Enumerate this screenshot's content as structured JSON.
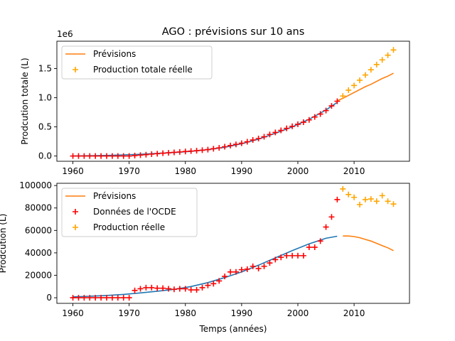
{
  "colors": {
    "fit": "#1f77b4",
    "forecast": "#ff7f0e",
    "ocde": "#ff0000",
    "actual": "#ffa500"
  },
  "chart_data": [
    {
      "type": "line",
      "title": "AGO : prévisions sur 10 ans",
      "xlabel": "",
      "ylabel": "Prodcution totale (L)",
      "offset_label": "1e6",
      "xlim": [
        1957.15,
        2019.85
      ],
      "ylim": [
        -0.09,
        1.97
      ],
      "x_ticks": [
        1960,
        1970,
        1980,
        1990,
        2000,
        2010
      ],
      "y_ticks": [
        0.0,
        0.5,
        1.0,
        1.5
      ],
      "y_tick_labels": [
        "0.0",
        "0.5",
        "1.0",
        "1.5"
      ],
      "legend_position": "upper left",
      "grid": false,
      "series": [
        {
          "name": "Prévisions",
          "kind": "line",
          "color": "#ff7f0e",
          "x": [
            2007,
            2008,
            2009,
            2010,
            2011,
            2012,
            2013,
            2014,
            2015,
            2016,
            2017
          ],
          "y": [
            0.95,
            0.99,
            1.04,
            1.09,
            1.14,
            1.19,
            1.23,
            1.28,
            1.33,
            1.37,
            1.42
          ]
        },
        {
          "name": "",
          "kind": "line",
          "color": "#1f77b4",
          "x": [
            1960,
            1963,
            1966,
            1969,
            1972,
            1975,
            1978,
            1981,
            1984,
            1987,
            1990,
            1993,
            1996,
            1999,
            2002,
            2005,
            2007
          ],
          "y": [
            0.0,
            0.005,
            0.01,
            0.02,
            0.03,
            0.045,
            0.06,
            0.08,
            0.11,
            0.15,
            0.21,
            0.29,
            0.39,
            0.5,
            0.63,
            0.79,
            0.92
          ]
        },
        {
          "name": "",
          "kind": "marker",
          "color": "#ff0000",
          "x": [
            1960,
            1961,
            1962,
            1963,
            1964,
            1965,
            1966,
            1967,
            1968,
            1969,
            1970,
            1971,
            1972,
            1973,
            1974,
            1975,
            1976,
            1977,
            1978,
            1979,
            1980,
            1981,
            1982,
            1983,
            1984,
            1985,
            1986,
            1987,
            1988,
            1989,
            1990,
            1991,
            1992,
            1993,
            1994,
            1995,
            1996,
            1997,
            1998,
            1999,
            2000,
            2001,
            2002,
            2003,
            2004,
            2005,
            2006,
            2007
          ],
          "y": [
            0.0,
            0.0,
            0.0,
            0.0,
            0.0,
            0.0,
            0.0,
            0.0,
            0.0,
            0.0,
            0.0,
            0.007,
            0.015,
            0.023,
            0.032,
            0.04,
            0.048,
            0.055,
            0.063,
            0.07,
            0.078,
            0.085,
            0.092,
            0.1,
            0.11,
            0.125,
            0.14,
            0.16,
            0.18,
            0.2,
            0.22,
            0.245,
            0.275,
            0.3,
            0.33,
            0.37,
            0.405,
            0.44,
            0.475,
            0.51,
            0.545,
            0.58,
            0.62,
            0.67,
            0.72,
            0.78,
            0.86,
            0.94
          ]
        },
        {
          "name": "Production totale réelle",
          "kind": "marker",
          "color": "#ffa500",
          "x": [
            2008,
            2009,
            2010,
            2011,
            2012,
            2013,
            2014,
            2015,
            2016,
            2017
          ],
          "y": [
            1.03,
            1.13,
            1.21,
            1.3,
            1.39,
            1.48,
            1.57,
            1.65,
            1.73,
            1.82
          ]
        }
      ]
    },
    {
      "type": "line",
      "title": "",
      "xlabel": "Temps (années)",
      "ylabel": "Prodcution (L)",
      "xlim": [
        1957.15,
        2019.85
      ],
      "ylim": [
        -5000,
        102000
      ],
      "x_ticks": [
        1960,
        1970,
        1980,
        1990,
        2000,
        2010
      ],
      "y_ticks": [
        0,
        20000,
        40000,
        60000,
        80000,
        100000
      ],
      "y_tick_labels": [
        "0",
        "20000",
        "40000",
        "60000",
        "80000",
        "100000"
      ],
      "legend_position": "upper left",
      "grid": false,
      "series": [
        {
          "name": "Prévisions",
          "kind": "line",
          "color": "#ff7f0e",
          "x": [
            2008,
            2009,
            2010,
            2011,
            2012,
            2013,
            2014,
            2015,
            2016,
            2017
          ],
          "y": [
            55000,
            55000,
            54500,
            53500,
            52000,
            50500,
            48500,
            46500,
            44500,
            42000
          ]
        },
        {
          "name": "",
          "kind": "line",
          "color": "#1f77b4",
          "x": [
            1960,
            1963,
            1966,
            1969,
            1972,
            1975,
            1978,
            1981,
            1984,
            1987,
            1990,
            1993,
            1996,
            1999,
            2002,
            2005,
            2007
          ],
          "y": [
            800,
            1300,
            2000,
            3000,
            4300,
            5800,
            7500,
            10000,
            13500,
            18000,
            23000,
            29000,
            35500,
            42000,
            48000,
            53000,
            54800
          ]
        },
        {
          "name": "Données de l'OCDE",
          "kind": "marker",
          "color": "#ff0000",
          "x": [
            1960,
            1961,
            1962,
            1963,
            1964,
            1965,
            1966,
            1967,
            1968,
            1969,
            1970,
            1971,
            1972,
            1973,
            1974,
            1975,
            1976,
            1977,
            1978,
            1979,
            1980,
            1981,
            1982,
            1983,
            1984,
            1985,
            1986,
            1987,
            1988,
            1989,
            1990,
            1991,
            1992,
            1993,
            1994,
            1995,
            1996,
            1997,
            1998,
            1999,
            2000,
            2001,
            2002,
            2003,
            2004,
            2005,
            2006,
            2007
          ],
          "y": [
            0,
            0,
            0,
            0,
            0,
            0,
            0,
            0,
            0,
            0,
            0,
            6500,
            8000,
            9000,
            9000,
            8500,
            8500,
            8000,
            7500,
            8000,
            8000,
            7000,
            7000,
            9000,
            11000,
            12500,
            15000,
            19000,
            23000,
            23000,
            25000,
            25500,
            28000,
            26000,
            28000,
            31000,
            34000,
            36000,
            37500,
            37500,
            37500,
            37500,
            45000,
            45000,
            50500,
            63000,
            72000,
            87500
          ]
        },
        {
          "name": "Production réelle",
          "kind": "marker",
          "color": "#ffa500",
          "x": [
            2008,
            2009,
            2010,
            2011,
            2012,
            2013,
            2014,
            2015,
            2016,
            2017
          ],
          "y": [
            97000,
            92000,
            89500,
            83000,
            87500,
            88000,
            86000,
            91000,
            86000,
            83500
          ]
        }
      ]
    }
  ]
}
